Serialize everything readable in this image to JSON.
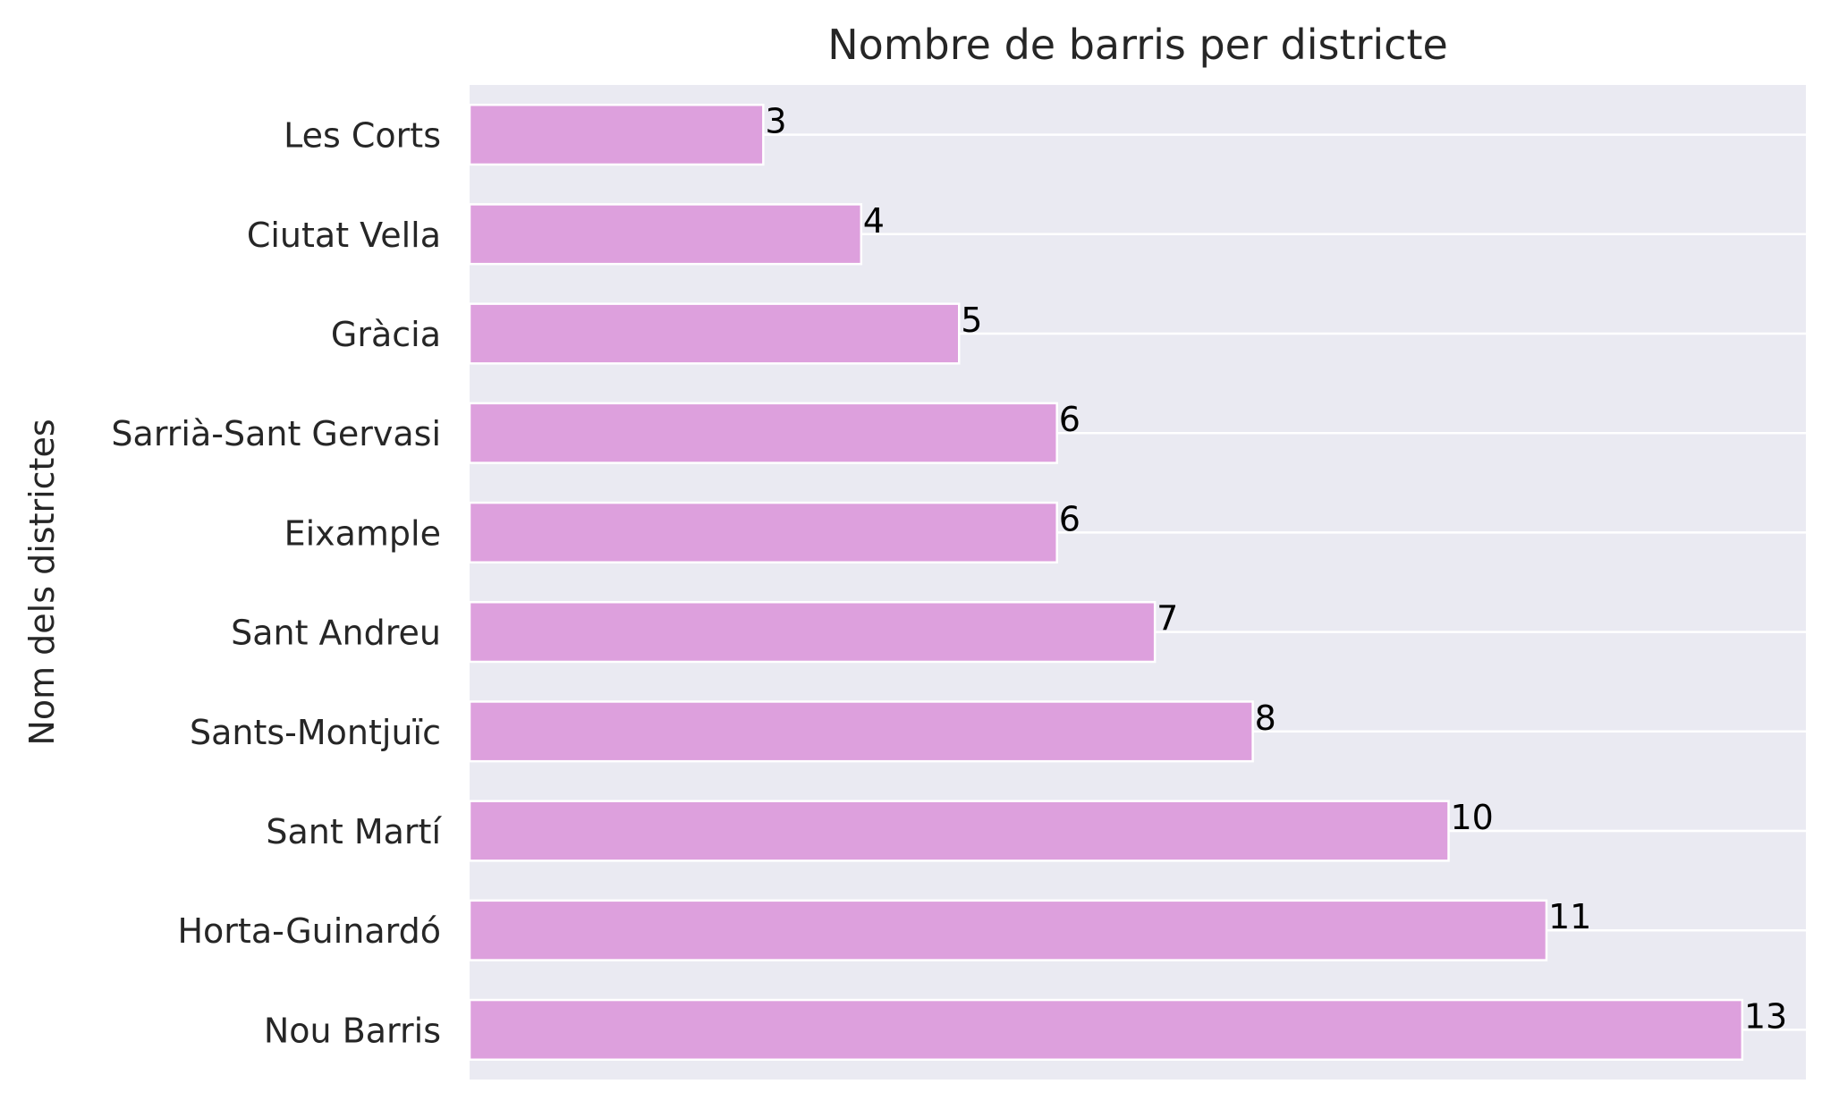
{
  "chart_data": {
    "type": "bar",
    "orientation": "horizontal",
    "title": "Nombre de barris per districte",
    "xlabel": "",
    "ylabel": "Nom dels districtes",
    "categories": [
      "Les Corts",
      "Ciutat Vella",
      "Gràcia",
      "Sarrià-Sant Gervasi",
      "Eixample",
      "Sant Andreu",
      "Sants-Montjuïc",
      "Sant Martí",
      "Horta-Guinardó",
      "Nou Barris"
    ],
    "values": [
      3,
      4,
      5,
      6,
      6,
      7,
      8,
      10,
      11,
      13
    ],
    "data_labels": [
      "3",
      "4",
      "5",
      "6",
      "6",
      "7",
      "8",
      "10",
      "11",
      "13"
    ],
    "xlim": [
      0,
      13.65
    ],
    "x_ticks_visible": false,
    "grid": true,
    "legend": "none",
    "colors": {
      "bar": "#dda0dd",
      "bar_edge": "#ffffff",
      "plot_background": "#eaeaf2",
      "grid": "#ffffff",
      "text": "#262626",
      "data_label": "#000000"
    }
  }
}
